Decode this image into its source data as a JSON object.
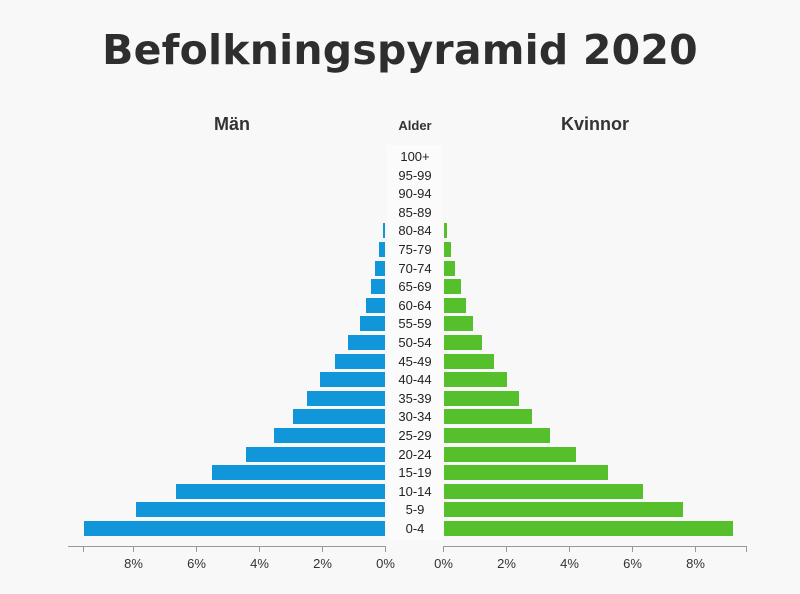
{
  "title": "Befolkningspyramid 2020",
  "headers": {
    "men": "Män",
    "age": "Alder",
    "women": "Kvinnor"
  },
  "colors": {
    "men": "#1096d9",
    "women": "#55bf2c"
  },
  "axis": {
    "men_ticks": [
      "8%",
      "6%",
      "4%",
      "2%",
      "0%"
    ],
    "women_ticks": [
      "0%",
      "2%",
      "4%",
      "6%",
      "8%"
    ]
  },
  "chart_data": {
    "type": "bar",
    "title": "Befolkningspyramid 2020",
    "xlabel": "",
    "ylabel": "Alder",
    "categories": [
      "100+",
      "95-99",
      "90-94",
      "85-89",
      "80-84",
      "75-79",
      "70-74",
      "65-69",
      "60-64",
      "55-59",
      "50-54",
      "45-49",
      "40-44",
      "35-39",
      "30-34",
      "25-29",
      "20-24",
      "15-19",
      "10-14",
      "5-9",
      "0-4"
    ],
    "series": [
      {
        "name": "Män",
        "values": [
          0,
          0,
          0,
          0,
          0.06,
          0.19,
          0.32,
          0.44,
          0.6,
          0.79,
          1.17,
          1.6,
          2.06,
          2.48,
          2.92,
          3.52,
          4.41,
          5.48,
          6.62,
          7.9,
          9.57
        ]
      },
      {
        "name": "Kvinnor",
        "values": [
          0,
          0,
          0,
          0,
          0.1,
          0.24,
          0.38,
          0.56,
          0.73,
          0.94,
          1.22,
          1.6,
          2.02,
          2.4,
          2.81,
          3.37,
          4.2,
          5.22,
          6.33,
          7.6,
          9.19
        ]
      }
    ],
    "xlim": [
      0,
      9.6
    ],
    "x_ticks": [
      "0%",
      "2%",
      "4%",
      "6%",
      "8%"
    ],
    "orientation": "horizontal-pyramid",
    "grid": false,
    "legend": "headers above each side"
  }
}
